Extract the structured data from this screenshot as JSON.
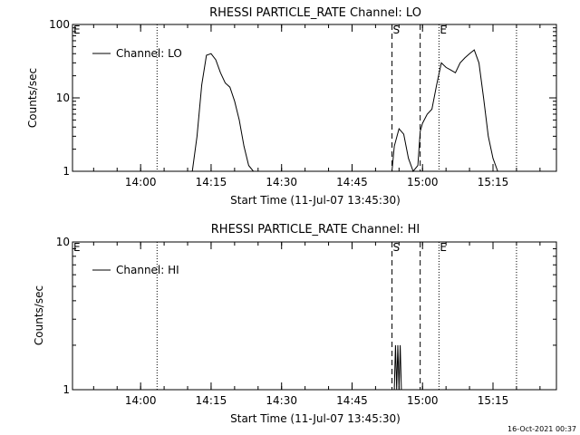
{
  "chart_data": [
    {
      "type": "line",
      "title": "RHESSI PARTICLE_RATE Channel: LO",
      "xlabel": "Start Time (11-Jul-07 13:45:30)",
      "ylabel": "Counts/sec",
      "y_scale": "log",
      "ylim": [
        1,
        100
      ],
      "xlim": [
        "13:45:30",
        "15:28:30"
      ],
      "x_ticks": [
        "14:00",
        "14:15",
        "14:30",
        "14:45",
        "15:00",
        "15:15"
      ],
      "y_ticks": [
        "1",
        "10",
        "100"
      ],
      "legend": "top-left",
      "grid": false,
      "series": [
        {
          "name": "Channel: LO",
          "x": [
            "14:11:00",
            "14:12:00",
            "14:13:00",
            "14:14:00",
            "14:15:00",
            "14:16:00",
            "14:17:00",
            "14:18:00",
            "14:19:00",
            "14:20:00",
            "14:21:00",
            "14:22:00",
            "14:23:00",
            "14:24:00",
            "14:53:30",
            "14:54:00",
            "14:55:00",
            "14:56:00",
            "14:57:00",
            "14:58:00",
            "14:59:00",
            "14:59:30",
            "15:00:00",
            "15:01:00",
            "15:02:00",
            "15:03:00",
            "15:04:00",
            "15:05:00",
            "15:06:00",
            "15:07:00",
            "15:08:00",
            "15:09:00",
            "15:10:00",
            "15:11:00",
            "15:12:00",
            "15:13:00",
            "15:14:00",
            "15:15:00",
            "15:16:00"
          ],
          "y": [
            1,
            3,
            15,
            38,
            40,
            33,
            22,
            16,
            14,
            9,
            5,
            2.2,
            1.2,
            1,
            1,
            2.2,
            3.8,
            3.2,
            1.5,
            1,
            1.2,
            3.5,
            4.5,
            6,
            7,
            15,
            30,
            26,
            24,
            22,
            30,
            35,
            40,
            45,
            30,
            10,
            3,
            1.5,
            1
          ],
          "color": "#000000"
        }
      ],
      "annotations": [
        {
          "text": "E",
          "x": "13:45:30",
          "style": "dotted"
        },
        {
          "text": "",
          "x": "14:03:30",
          "style": "dotted"
        },
        {
          "text": "S",
          "x": "14:53:30",
          "style": "dashed"
        },
        {
          "text": "",
          "x": "14:59:30",
          "style": "dashed"
        },
        {
          "text": "E",
          "x": "15:03:30",
          "style": "dotted"
        },
        {
          "text": "",
          "x": "15:20:00",
          "style": "dotted"
        }
      ]
    },
    {
      "type": "line",
      "title": "RHESSI PARTICLE_RATE Channel: HI",
      "xlabel": "Start Time (11-Jul-07 13:45:30)",
      "ylabel": "Counts/sec",
      "y_scale": "log",
      "ylim": [
        1,
        10
      ],
      "xlim": [
        "13:45:30",
        "15:28:30"
      ],
      "x_ticks": [
        "14:00",
        "14:15",
        "14:30",
        "14:45",
        "15:00",
        "15:15"
      ],
      "y_ticks": [
        "1",
        "10"
      ],
      "legend": "top-left",
      "grid": false,
      "series": [
        {
          "name": "Channel: HI",
          "x": [
            "14:54:00",
            "14:54:15",
            "14:54:30",
            "14:54:45",
            "14:55:00",
            "14:55:15",
            "14:55:30"
          ],
          "y": [
            1,
            2,
            1,
            2,
            1,
            2,
            1
          ],
          "color": "#000000"
        }
      ],
      "annotations": [
        {
          "text": "E",
          "x": "13:45:30",
          "style": "dotted"
        },
        {
          "text": "",
          "x": "14:03:30",
          "style": "dotted"
        },
        {
          "text": "S",
          "x": "14:53:30",
          "style": "dashed"
        },
        {
          "text": "",
          "x": "14:59:30",
          "style": "dashed"
        },
        {
          "text": "E",
          "x": "15:03:30",
          "style": "dotted"
        },
        {
          "text": "",
          "x": "15:20:00",
          "style": "dotted"
        }
      ]
    }
  ],
  "footer": {
    "timestamp": "16-Oct-2021 00:37"
  }
}
